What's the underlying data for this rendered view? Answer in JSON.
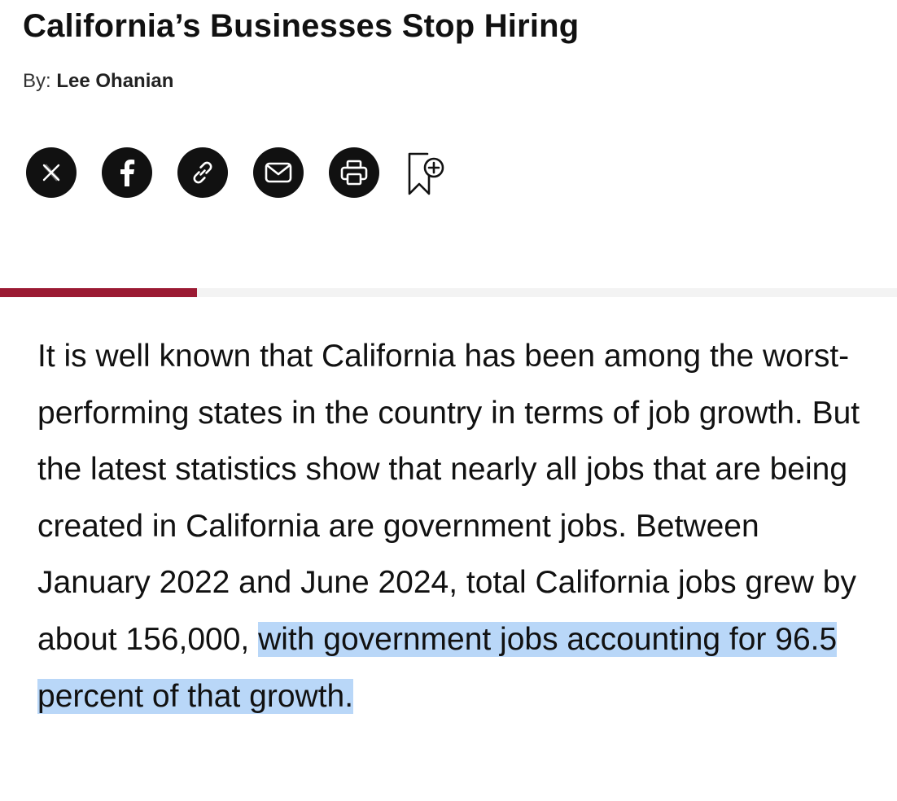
{
  "article": {
    "title": "California’s Businesses Stop Hiring",
    "byline_prefix": "By:",
    "author": "Lee Ohanian",
    "reading_progress": 0.22,
    "paragraph_plain": "It is well known that California has been among the worst-performing states in the country in terms of job growth. But the latest statistics show that nearly all jobs that are being created in California are government jobs. Between January 2022 and June 2024, total California jobs grew by about 156,000, ",
    "paragraph_highlighted": "with government jobs accounting for 96.5 percent of that growth."
  },
  "share": {
    "icons": [
      "x-icon",
      "facebook-icon",
      "link-icon",
      "email-icon",
      "print-icon",
      "bookmark-add-icon"
    ]
  },
  "colors": {
    "accent": "#9b1a33",
    "highlight": "#b9d7f8",
    "icon_bg": "#111111"
  }
}
